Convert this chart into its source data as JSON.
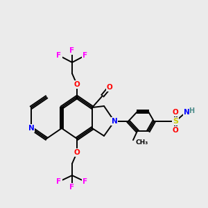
{
  "bg_color": "#ebebeb",
  "bond_color": "#000000",
  "atom_colors": {
    "N": "#0000ff",
    "O": "#ff0000",
    "F": "#ff00ff",
    "S": "#cccc00",
    "H": "#4a8a8a",
    "C": "#000000"
  },
  "bond_width": 1.4,
  "font_size": 7.5
}
